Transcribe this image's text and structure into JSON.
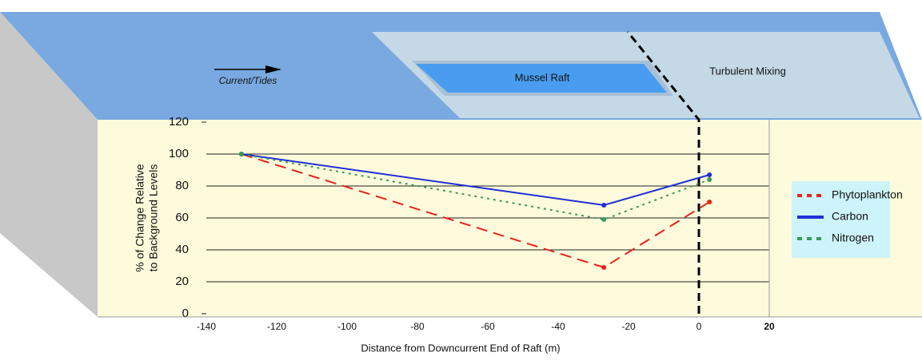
{
  "chart_data": {
    "type": "line",
    "annotations": {
      "current": "Current/Tides",
      "raft": "Mussel Raft",
      "mixing": "Turbulent Mixing"
    },
    "xlabel": "Distance from Downcurrent End of Raft (m)",
    "ylabel": [
      "% of Change Relative",
      "to Background Levels"
    ],
    "x": [
      -130,
      -27,
      3
    ],
    "series": [
      {
        "name": "Phytoplankton",
        "color": "#e8231c",
        "dash": "14 8",
        "values": [
          100,
          29,
          70
        ]
      },
      {
        "name": "Carbon",
        "color": "#1f2fd6",
        "dash": "",
        "values": [
          100,
          68,
          87
        ]
      },
      {
        "name": "Nitrogen",
        "color": "#3a9a5a",
        "dash": "3 5",
        "values": [
          100,
          59,
          84
        ]
      }
    ],
    "xlim": [
      -140,
      20
    ],
    "xticks": [
      -140,
      -120,
      -100,
      -80,
      -60,
      -40,
      -20,
      0,
      20
    ],
    "ylim": [
      0,
      120
    ],
    "yticks": [
      0,
      20,
      40,
      60,
      80,
      100,
      120
    ],
    "vline_x": 0,
    "grid": true
  }
}
